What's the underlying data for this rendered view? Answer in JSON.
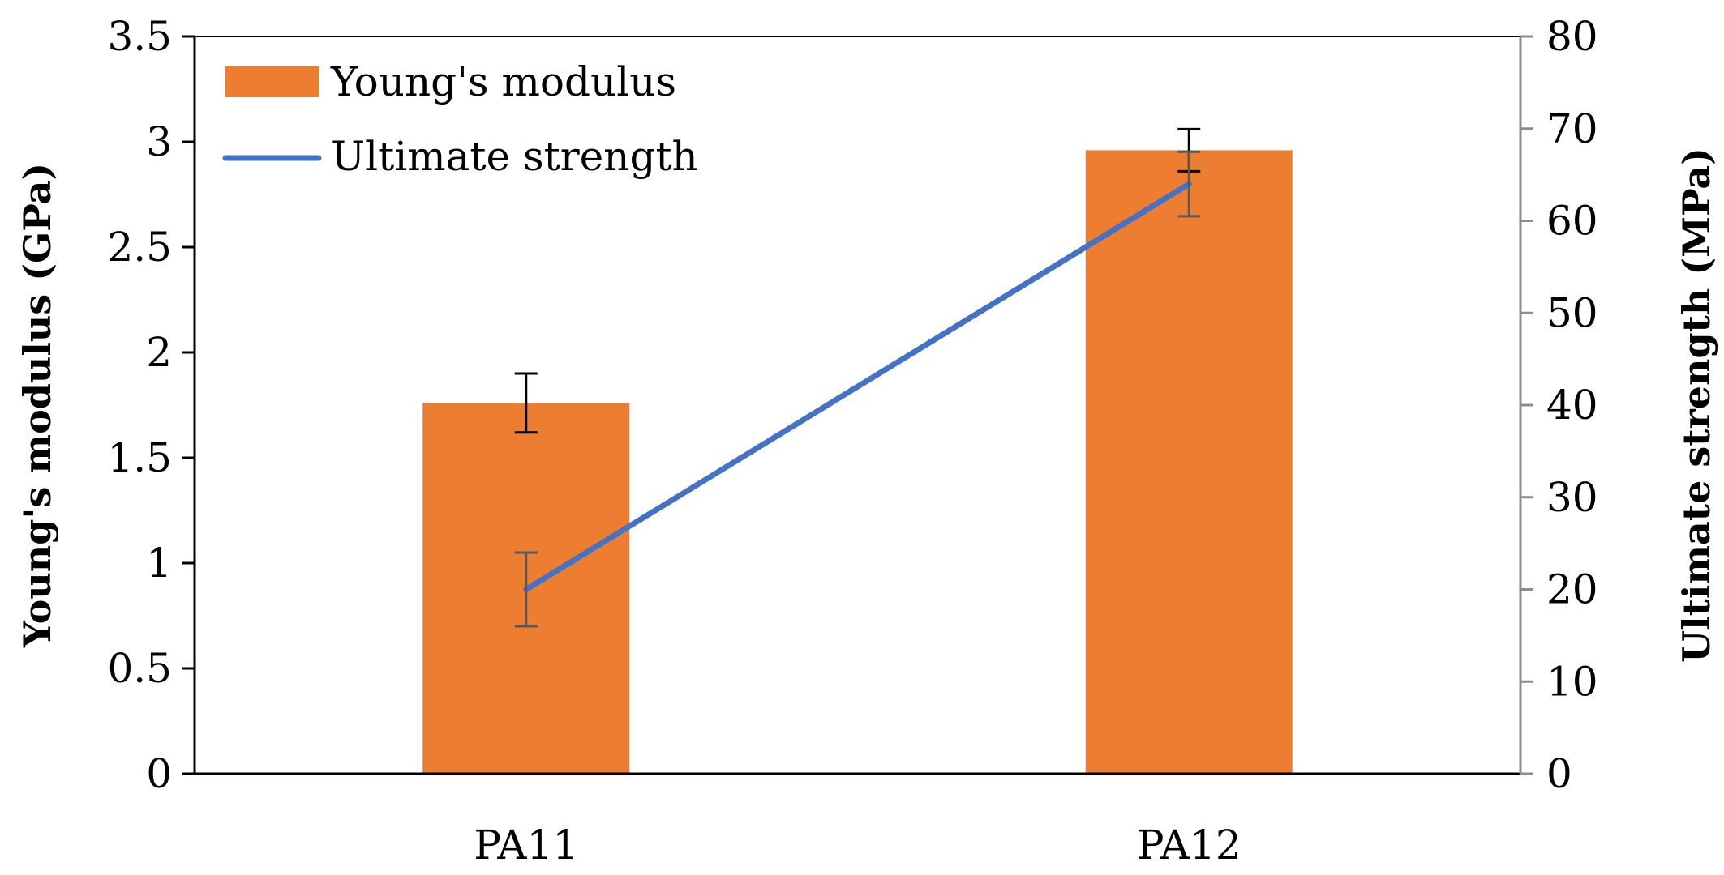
{
  "chart_data": {
    "type": "bar",
    "categories": [
      "PA11",
      "PA12"
    ],
    "series": [
      {
        "name": "Young's modulus",
        "kind": "bar",
        "axis": "left",
        "color": "#ED7D31",
        "values": [
          1.76,
          2.96
        ],
        "error": [
          0.14,
          0.1
        ]
      },
      {
        "name": "Ultimate strength",
        "kind": "line",
        "axis": "right",
        "color": "#4472C4",
        "values": [
          20,
          64
        ],
        "error": [
          4,
          3.5
        ]
      }
    ],
    "ylabel": "Young's modulus (GPa)",
    "y2label": "Ultimate strength (MPa)",
    "ylim": [
      0,
      3.5
    ],
    "y2lim": [
      0,
      80
    ],
    "yticks": [
      "0",
      "0.5",
      "1",
      "1.5",
      "2",
      "2.5",
      "3",
      "3.5"
    ],
    "y2ticks": [
      "0",
      "10",
      "20",
      "30",
      "40",
      "50",
      "60",
      "70",
      "80"
    ],
    "grid": false,
    "legend_position": "top-left"
  }
}
